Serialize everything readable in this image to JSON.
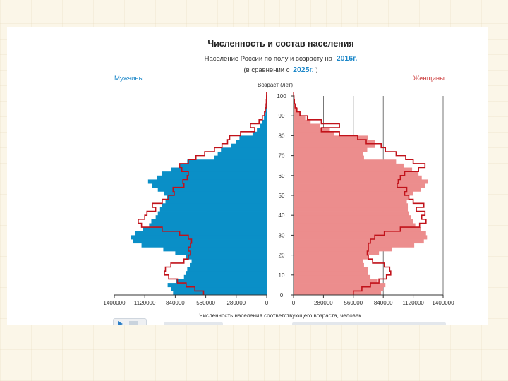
{
  "chart_data": {
    "type": "population-pyramid",
    "title": "Численность и состав населения",
    "subtitle_prefix": "Население России по полу и возрасту на",
    "subtitle_year": "2016г.",
    "comparison_prefix": "(в сравнении с",
    "comparison_year": "2025г.",
    "comparison_suffix": ")",
    "left_label": "Мужчины",
    "right_label": "Женщины",
    "age_axis_label": "Возраст (лет)",
    "xlabel": "Численность населения соответствующего возраста, человек",
    "left_ticks": [
      "1400000",
      "1120000",
      "840000",
      "560000",
      "280000",
      "0"
    ],
    "right_ticks": [
      "0",
      "280000",
      "560000",
      "840000",
      "1120000",
      "1400000"
    ],
    "age_ticks": [
      "0",
      "10",
      "20",
      "30",
      "40",
      "50",
      "60",
      "70",
      "80",
      "90",
      "100"
    ],
    "xlim": [
      0,
      1400000
    ],
    "ylim": [
      0,
      100
    ],
    "colors": {
      "men": "#0a8fc7",
      "women": "#ec8d8d",
      "comparison": "#c1121a"
    },
    "men_2016": [
      [
        0,
        860000
      ],
      [
        2,
        880000
      ],
      [
        4,
        910000
      ],
      [
        6,
        830000
      ],
      [
        8,
        760000
      ],
      [
        10,
        740000
      ],
      [
        12,
        730000
      ],
      [
        14,
        700000
      ],
      [
        16,
        690000
      ],
      [
        18,
        740000
      ],
      [
        20,
        840000
      ],
      [
        22,
        950000
      ],
      [
        24,
        1150000
      ],
      [
        26,
        1230000
      ],
      [
        28,
        1250000
      ],
      [
        30,
        1210000
      ],
      [
        32,
        1140000
      ],
      [
        34,
        1080000
      ],
      [
        36,
        1060000
      ],
      [
        38,
        1020000
      ],
      [
        40,
        1000000
      ],
      [
        42,
        980000
      ],
      [
        44,
        960000
      ],
      [
        46,
        930000
      ],
      [
        48,
        920000
      ],
      [
        50,
        940000
      ],
      [
        52,
        1000000
      ],
      [
        54,
        1050000
      ],
      [
        56,
        1090000
      ],
      [
        58,
        1010000
      ],
      [
        60,
        960000
      ],
      [
        62,
        880000
      ],
      [
        64,
        800000
      ],
      [
        66,
        730000
      ],
      [
        68,
        480000
      ],
      [
        70,
        450000
      ],
      [
        72,
        420000
      ],
      [
        74,
        330000
      ],
      [
        76,
        280000
      ],
      [
        78,
        250000
      ],
      [
        80,
        130000
      ],
      [
        82,
        90000
      ],
      [
        84,
        60000
      ],
      [
        86,
        40000
      ],
      [
        88,
        25000
      ],
      [
        90,
        12000
      ],
      [
        92,
        6000
      ],
      [
        94,
        3000
      ],
      [
        96,
        1500
      ],
      [
        98,
        800
      ],
      [
        100,
        300
      ]
    ],
    "women_2016": [
      [
        0,
        820000
      ],
      [
        2,
        840000
      ],
      [
        4,
        860000
      ],
      [
        6,
        790000
      ],
      [
        8,
        720000
      ],
      [
        10,
        700000
      ],
      [
        12,
        700000
      ],
      [
        14,
        660000
      ],
      [
        16,
        650000
      ],
      [
        18,
        700000
      ],
      [
        20,
        800000
      ],
      [
        22,
        920000
      ],
      [
        24,
        1130000
      ],
      [
        26,
        1220000
      ],
      [
        28,
        1250000
      ],
      [
        30,
        1240000
      ],
      [
        32,
        1190000
      ],
      [
        34,
        1140000
      ],
      [
        36,
        1120000
      ],
      [
        38,
        1100000
      ],
      [
        40,
        1080000
      ],
      [
        42,
        1070000
      ],
      [
        44,
        1070000
      ],
      [
        46,
        1060000
      ],
      [
        48,
        1080000
      ],
      [
        50,
        1120000
      ],
      [
        52,
        1190000
      ],
      [
        54,
        1230000
      ],
      [
        56,
        1260000
      ],
      [
        58,
        1200000
      ],
      [
        60,
        1170000
      ],
      [
        62,
        1110000
      ],
      [
        64,
        1030000
      ],
      [
        66,
        960000
      ],
      [
        68,
        660000
      ],
      [
        70,
        650000
      ],
      [
        72,
        690000
      ],
      [
        74,
        760000
      ],
      [
        76,
        760000
      ],
      [
        78,
        700000
      ],
      [
        80,
        380000
      ],
      [
        82,
        340000
      ],
      [
        84,
        250000
      ],
      [
        86,
        160000
      ],
      [
        88,
        110000
      ],
      [
        90,
        70000
      ],
      [
        92,
        40000
      ],
      [
        94,
        20000
      ],
      [
        96,
        10000
      ],
      [
        98,
        5000
      ],
      [
        100,
        2000
      ]
    ],
    "men_2025": [
      [
        0,
        580000
      ],
      [
        2,
        660000
      ],
      [
        4,
        740000
      ],
      [
        6,
        820000
      ],
      [
        8,
        900000
      ],
      [
        10,
        940000
      ],
      [
        12,
        930000
      ],
      [
        14,
        880000
      ],
      [
        16,
        760000
      ],
      [
        18,
        720000
      ],
      [
        20,
        700000
      ],
      [
        22,
        720000
      ],
      [
        24,
        700000
      ],
      [
        26,
        690000
      ],
      [
        28,
        720000
      ],
      [
        30,
        800000
      ],
      [
        32,
        960000
      ],
      [
        34,
        1150000
      ],
      [
        36,
        1180000
      ],
      [
        38,
        1120000
      ],
      [
        40,
        1100000
      ],
      [
        42,
        1020000
      ],
      [
        44,
        1050000
      ],
      [
        46,
        960000
      ],
      [
        48,
        900000
      ],
      [
        50,
        850000
      ],
      [
        52,
        860000
      ],
      [
        54,
        760000
      ],
      [
        56,
        770000
      ],
      [
        58,
        730000
      ],
      [
        60,
        720000
      ],
      [
        62,
        780000
      ],
      [
        64,
        800000
      ],
      [
        66,
        720000
      ],
      [
        68,
        650000
      ],
      [
        70,
        570000
      ],
      [
        72,
        480000
      ],
      [
        74,
        410000
      ],
      [
        76,
        360000
      ],
      [
        78,
        340000
      ],
      [
        80,
        240000
      ],
      [
        82,
        110000
      ],
      [
        84,
        150000
      ],
      [
        86,
        70000
      ],
      [
        88,
        40000
      ],
      [
        90,
        20000
      ],
      [
        92,
        12000
      ],
      [
        94,
        6000
      ],
      [
        96,
        3000
      ],
      [
        98,
        1500
      ],
      [
        100,
        500
      ]
    ],
    "women_2025": [
      [
        0,
        560000
      ],
      [
        2,
        640000
      ],
      [
        4,
        720000
      ],
      [
        6,
        800000
      ],
      [
        8,
        870000
      ],
      [
        10,
        910000
      ],
      [
        12,
        900000
      ],
      [
        14,
        850000
      ],
      [
        16,
        740000
      ],
      [
        18,
        700000
      ],
      [
        20,
        690000
      ],
      [
        22,
        700000
      ],
      [
        24,
        700000
      ],
      [
        26,
        720000
      ],
      [
        28,
        760000
      ],
      [
        30,
        850000
      ],
      [
        32,
        1000000
      ],
      [
        34,
        1180000
      ],
      [
        36,
        1240000
      ],
      [
        38,
        1200000
      ],
      [
        40,
        1230000
      ],
      [
        42,
        1150000
      ],
      [
        44,
        1220000
      ],
      [
        46,
        1120000
      ],
      [
        48,
        1080000
      ],
      [
        50,
        1040000
      ],
      [
        52,
        1060000
      ],
      [
        54,
        970000
      ],
      [
        56,
        980000
      ],
      [
        58,
        1000000
      ],
      [
        60,
        1040000
      ],
      [
        62,
        1170000
      ],
      [
        64,
        1230000
      ],
      [
        66,
        1120000
      ],
      [
        68,
        1050000
      ],
      [
        70,
        960000
      ],
      [
        72,
        860000
      ],
      [
        74,
        820000
      ],
      [
        76,
        680000
      ],
      [
        78,
        600000
      ],
      [
        80,
        430000
      ],
      [
        82,
        260000
      ],
      [
        84,
        430000
      ],
      [
        86,
        260000
      ],
      [
        88,
        130000
      ],
      [
        90,
        60000
      ],
      [
        92,
        30000
      ],
      [
        94,
        15000
      ],
      [
        96,
        8000
      ],
      [
        98,
        4000
      ],
      [
        100,
        1500
      ]
    ]
  },
  "controls": {
    "play_icon": "play-icon"
  }
}
